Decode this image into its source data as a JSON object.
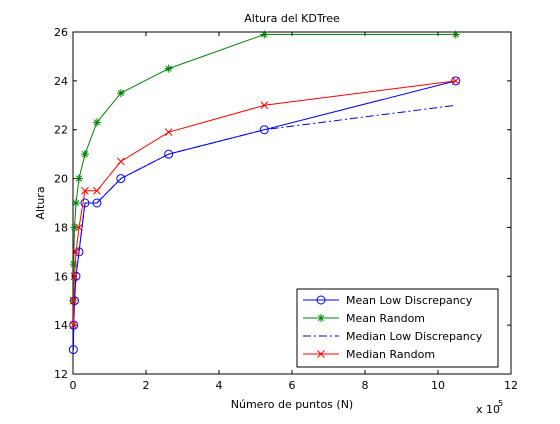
{
  "chart_data": {
    "type": "line",
    "title": "Altura del KDTree",
    "xlabel": "Número de puntos (N)",
    "ylabel": "Altura",
    "x_multiplier": "x 10",
    "x_multiplier_exp": "5",
    "xlim": [
      0,
      12
    ],
    "ylim": [
      12,
      26
    ],
    "xticks": [
      0,
      2,
      4,
      6,
      8,
      10,
      12
    ],
    "yticks": [
      12,
      14,
      16,
      18,
      20,
      22,
      24,
      26
    ],
    "grid": false,
    "legend_position": "bottom-right",
    "x_scaled": [
      0.01024,
      0.02048,
      0.04096,
      0.08192,
      0.16384,
      0.32768,
      0.65536,
      1.31072,
      2.62144,
      5.24288,
      10.48576
    ],
    "series": [
      {
        "name": "Mean Low Discrepancy",
        "color": "#0000ff",
        "marker": "circle",
        "line": "solid",
        "y": [
          13,
          14,
          15,
          16,
          17,
          19,
          19,
          20,
          21,
          22,
          24
        ]
      },
      {
        "name": "Mean Random",
        "color": "#008000",
        "marker": "star",
        "line": "solid",
        "y": [
          15,
          16.5,
          18,
          19,
          20,
          21,
          22.3,
          23.5,
          24.5,
          25.9,
          25.9
        ]
      },
      {
        "name": "Median Low Discrepancy",
        "color": "#0000ff",
        "marker": "none",
        "line": "dashdot",
        "y": [
          13,
          14,
          15,
          16,
          17,
          19,
          19,
          20,
          21,
          22,
          23
        ]
      },
      {
        "name": "Median Random",
        "color": "#ff0000",
        "marker": "x",
        "line": "solid",
        "y": [
          14,
          15,
          16,
          17,
          18,
          19.5,
          19.5,
          20.7,
          21.9,
          23,
          24
        ]
      }
    ]
  }
}
